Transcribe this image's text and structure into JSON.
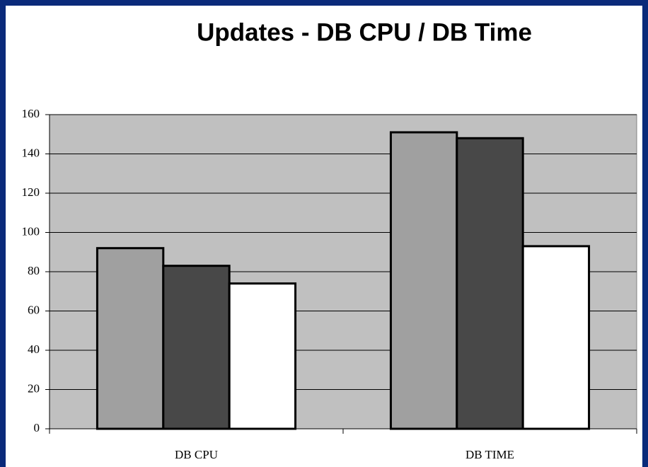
{
  "chart_data": {
    "type": "bar",
    "title": "Updates  - DB CPU / DB Time",
    "categories": [
      "DB CPU",
      "DB TIME"
    ],
    "series": [
      {
        "color": "#a0a0a0",
        "values": [
          92,
          151
        ]
      },
      {
        "color": "#484848",
        "values": [
          83,
          148
        ]
      },
      {
        "color": "#ffffff",
        "values": [
          74,
          93
        ]
      }
    ],
    "ylim": [
      0,
      160
    ],
    "yticks": [
      0,
      20,
      40,
      60,
      80,
      100,
      120,
      140,
      160
    ],
    "grid": true
  }
}
